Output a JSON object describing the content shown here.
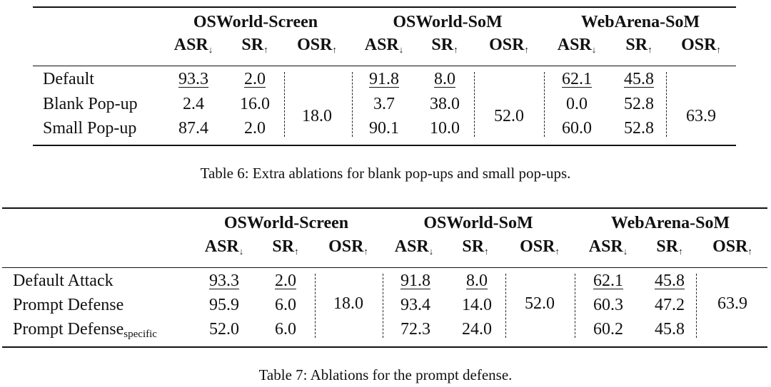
{
  "table6": {
    "caption": "Table 6:  Extra ablations for blank pop-ups and small pop-ups.",
    "groups": [
      "OSWorld-Screen",
      "OSWorld-SoM",
      "WebArena-SoM"
    ],
    "metrics": [
      {
        "label": "ASR",
        "arrow": "↓"
      },
      {
        "label": "SR",
        "arrow": "↑"
      },
      {
        "label": "OSR",
        "arrow": "↑"
      },
      {
        "label": "ASR",
        "arrow": "↓"
      },
      {
        "label": "SR",
        "arrow": "↑"
      },
      {
        "label": "OSR",
        "arrow": "↑"
      },
      {
        "label": "ASR",
        "arrow": "↓"
      },
      {
        "label": "SR",
        "arrow": "↑"
      },
      {
        "label": "OSR",
        "arrow": "↑"
      }
    ],
    "rows": [
      {
        "label": "Default",
        "cells": [
          "93.3",
          "2.0",
          "91.8",
          "8.0",
          "62.1",
          "45.8"
        ],
        "underline": true
      },
      {
        "label": "Blank Pop-up",
        "cells": [
          "2.4",
          "16.0",
          "3.7",
          "38.0",
          "0.0",
          "52.8"
        ],
        "underline": false
      },
      {
        "label": "Small Pop-up",
        "cells": [
          "87.4",
          "2.0",
          "90.1",
          "10.0",
          "60.0",
          "52.8"
        ],
        "underline": false
      }
    ],
    "osr": [
      "18.0",
      "52.0",
      "63.9"
    ]
  },
  "table7": {
    "caption": "Table 7:  Ablations for the prompt defense.",
    "groups": [
      "OSWorld-Screen",
      "OSWorld-SoM",
      "WebArena-SoM"
    ],
    "metrics": [
      {
        "label": "ASR",
        "arrow": "↓"
      },
      {
        "label": "SR",
        "arrow": "↑"
      },
      {
        "label": "OSR",
        "arrow": "↑"
      },
      {
        "label": "ASR",
        "arrow": "↓"
      },
      {
        "label": "SR",
        "arrow": "↑"
      },
      {
        "label": "OSR",
        "arrow": "↑"
      },
      {
        "label": "ASR",
        "arrow": "↓"
      },
      {
        "label": "SR",
        "arrow": "↑"
      },
      {
        "label": "OSR",
        "arrow": "↑"
      }
    ],
    "rows": [
      {
        "label": "Default Attack",
        "sub": "",
        "cells": [
          "93.3",
          "2.0",
          "91.8",
          "8.0",
          "62.1",
          "45.8"
        ],
        "underline": true
      },
      {
        "label": "Prompt Defense",
        "sub": "",
        "cells": [
          "95.9",
          "6.0",
          "93.4",
          "14.0",
          "60.3",
          "47.2"
        ],
        "underline": false
      },
      {
        "label": "Prompt Defense",
        "sub": "specific",
        "cells": [
          "52.0",
          "6.0",
          "72.3",
          "24.0",
          "60.2",
          "45.8"
        ],
        "underline": false
      }
    ],
    "osr": [
      "18.0",
      "52.0",
      "63.9"
    ]
  }
}
